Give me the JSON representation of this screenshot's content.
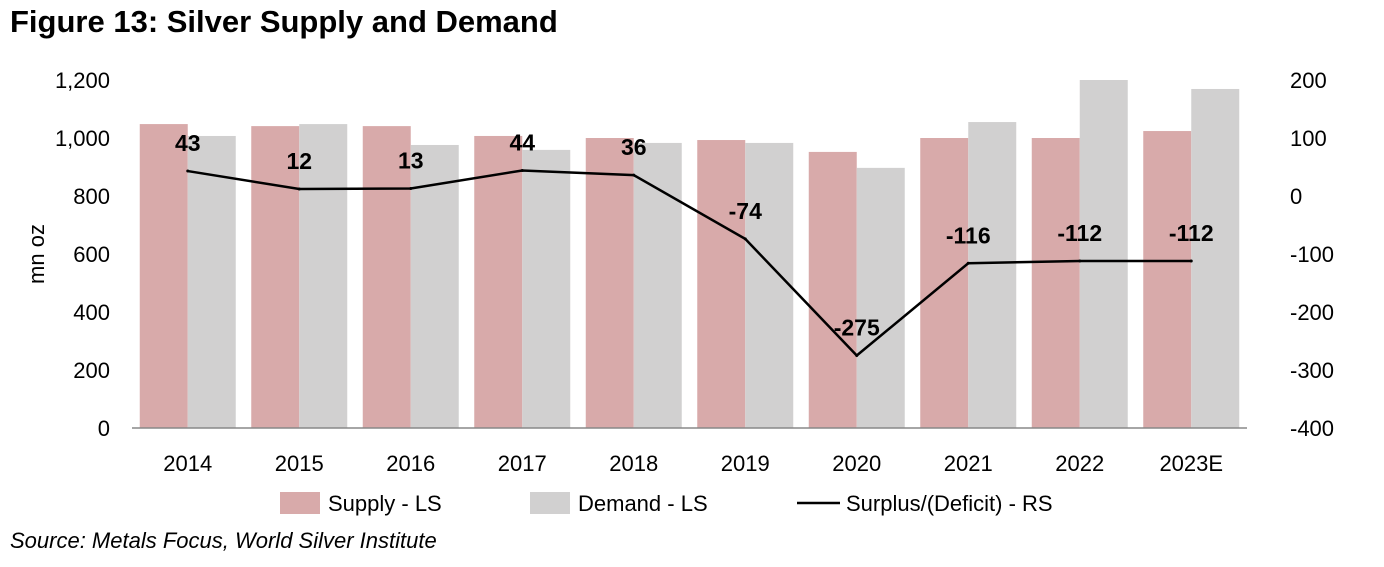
{
  "title": "Figure 13: Silver Supply and Demand",
  "source": "Source: Metals Focus, World Silver Institute",
  "colors": {
    "supply": "#d8aaaa",
    "demand": "#d1d0d0",
    "line": "#000000"
  },
  "chart_data": {
    "type": "bar",
    "title": "Figure 13: Silver Supply and Demand",
    "categories": [
      "2014",
      "2015",
      "2016",
      "2017",
      "2018",
      "2019",
      "2020",
      "2021",
      "2022",
      "2023E"
    ],
    "ylabel": "mn oz",
    "ylim": [
      0,
      1200
    ],
    "yticks": [
      0,
      200,
      400,
      600,
      800,
      1000,
      1200
    ],
    "ytick_labels": [
      "0",
      "200",
      "400",
      "600",
      "800",
      "1,000",
      "1,200"
    ],
    "y2lim": [
      -400,
      200
    ],
    "y2ticks": [
      -400,
      -300,
      -200,
      -100,
      0,
      100,
      200
    ],
    "y2tick_labels": [
      "-400",
      "-300",
      "-200",
      "-100",
      "0",
      "100",
      "200"
    ],
    "series": [
      {
        "name": "Supply - LS",
        "type": "bar",
        "axis": "left",
        "values": [
          1048,
          1041,
          1041,
          1007,
          1000,
          993,
          952,
          1000,
          1000,
          1024
        ]
      },
      {
        "name": "Demand - LS",
        "type": "bar",
        "axis": "left",
        "values": [
          1007,
          1048,
          976,
          959,
          983,
          983,
          897,
          1055,
          1200,
          1169
        ]
      },
      {
        "name": "Surplus/(Deficit) - RS",
        "type": "line",
        "axis": "right",
        "values": [
          43,
          12,
          13,
          44,
          36,
          -74,
          -275,
          -116,
          -112,
          -112
        ],
        "labels": [
          "43",
          "12",
          "13",
          "44",
          "36",
          "-74",
          "-275",
          "-116",
          "-112",
          "-112"
        ]
      }
    ],
    "legend": "bottom",
    "grid": false
  }
}
